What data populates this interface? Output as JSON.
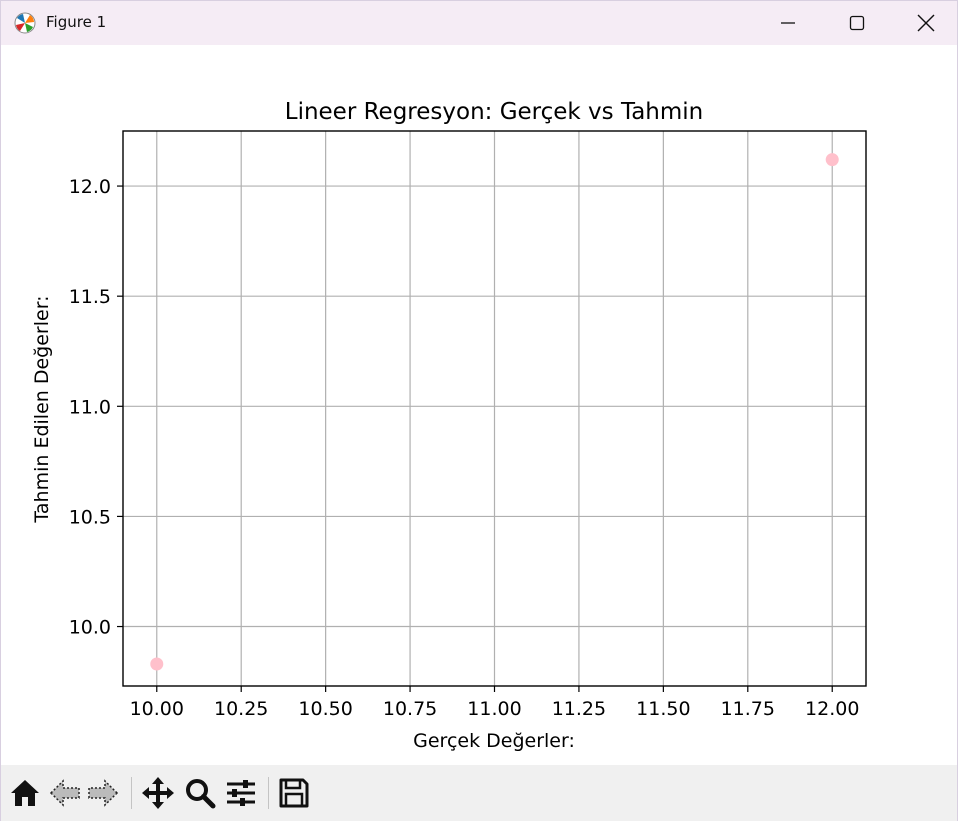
{
  "window": {
    "title": "Figure 1",
    "icons": {
      "app": "matplotlib-icon",
      "minimize": "minimize-icon",
      "maximize": "maximize-icon",
      "close": "close-icon"
    }
  },
  "chart_data": {
    "type": "scatter",
    "title": "Lineer Regresyon: Gerçek vs Tahmin",
    "xlabel": "Gerçek Değerler:",
    "ylabel": "Tahmin Edilen Değerler:",
    "xlim": [
      9.9,
      12.1
    ],
    "ylim": [
      9.73,
      12.25
    ],
    "x_ticks": [
      10.0,
      10.25,
      10.5,
      10.75,
      11.0,
      11.25,
      11.5,
      11.75,
      12.0
    ],
    "x_tick_labels": [
      "10.00",
      "10.25",
      "10.50",
      "10.75",
      "11.00",
      "11.25",
      "11.50",
      "11.75",
      "12.00"
    ],
    "y_ticks": [
      10.0,
      10.5,
      11.0,
      11.5,
      12.0
    ],
    "y_tick_labels": [
      "10.0",
      "10.5",
      "11.0",
      "11.5",
      "12.0"
    ],
    "grid": true,
    "point_color": "#ffc0cb",
    "points": [
      {
        "x": 10.0,
        "y": 9.83
      },
      {
        "x": 12.0,
        "y": 12.12
      }
    ]
  },
  "toolbar": {
    "buttons": [
      {
        "name": "home-button",
        "icon": "home-icon"
      },
      {
        "name": "back-button",
        "icon": "back-arrow-icon"
      },
      {
        "name": "forward-button",
        "icon": "forward-arrow-icon"
      },
      {
        "name": "pan-button",
        "icon": "move-icon"
      },
      {
        "name": "zoom-button",
        "icon": "magnifier-icon"
      },
      {
        "name": "configure-subplots-button",
        "icon": "sliders-icon"
      },
      {
        "name": "save-button",
        "icon": "floppy-disk-icon"
      }
    ]
  }
}
